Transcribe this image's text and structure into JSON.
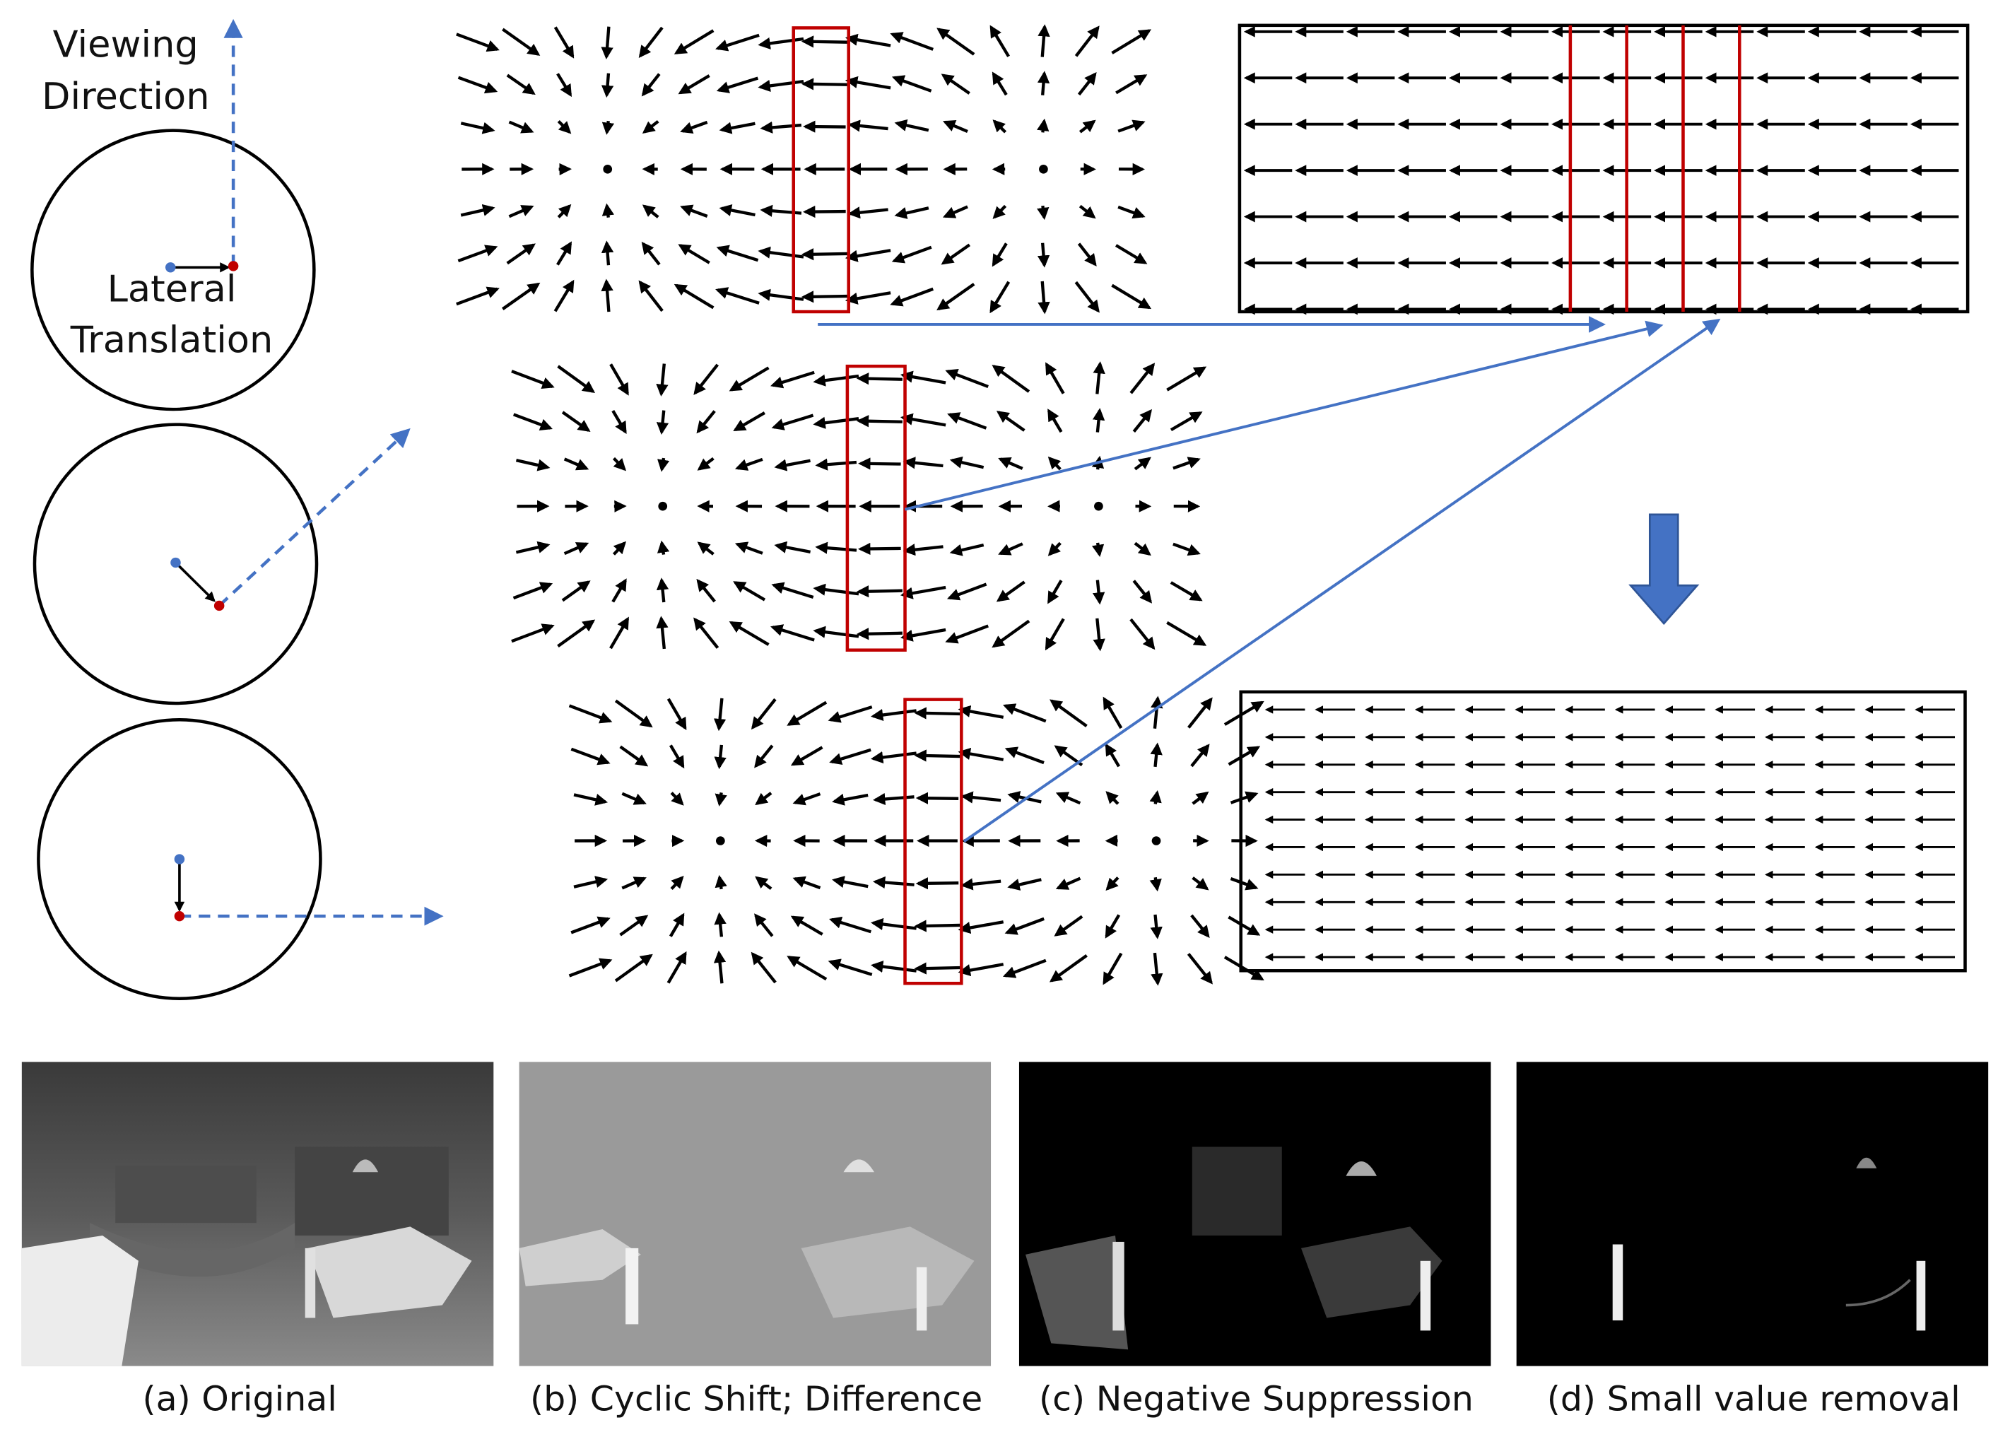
{
  "labels": {
    "viewing_direction": [
      "Viewing",
      "Direction"
    ],
    "lateral_translation": [
      "Lateral",
      "Translation"
    ]
  },
  "captions": [
    "(a) Original",
    "(b) Cyclic Shift; Difference",
    "(c) Negative Suppression",
    "(d) Small value removal"
  ]
}
